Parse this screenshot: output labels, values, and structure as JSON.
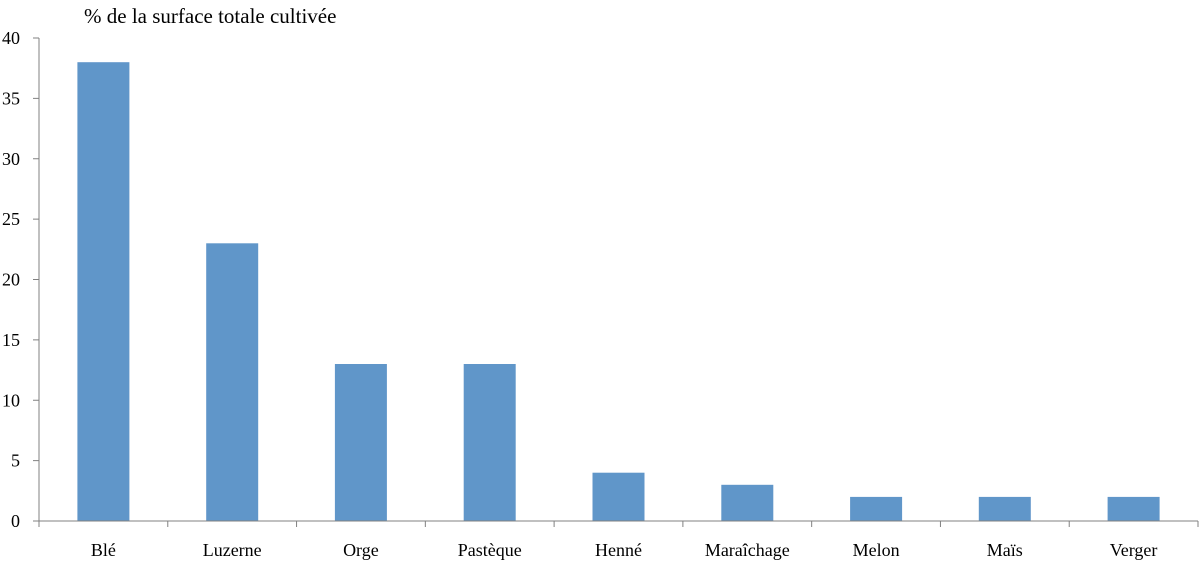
{
  "chart_data": {
    "type": "bar",
    "title": "",
    "xlabel": "",
    "ylabel": "% de la surface totale cultivée",
    "categories": [
      "Blé",
      "Luzerne",
      "Orge",
      "Pastèque",
      "Henné",
      "Maraîchage",
      "Melon",
      "Maïs",
      "Verger"
    ],
    "values": [
      38,
      23,
      13,
      13,
      4,
      3,
      2,
      2,
      2
    ],
    "ylim": [
      0,
      40
    ],
    "yticks": [
      0,
      5,
      10,
      15,
      20,
      25,
      30,
      35,
      40
    ],
    "grid": false,
    "legend": "none",
    "bar_color": "#6096c9",
    "axis_color": "#808080"
  }
}
